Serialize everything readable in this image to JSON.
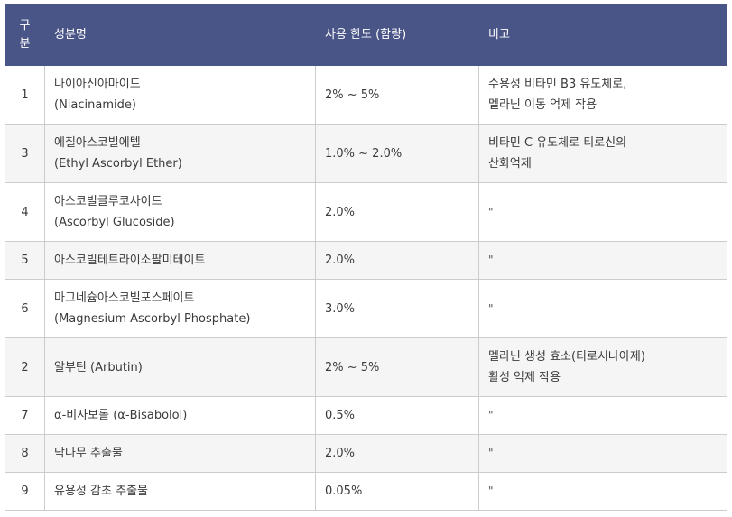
{
  "header": {
    "col_num_line1": "구",
    "col_num_line2": "분",
    "col_name": "성분명",
    "col_limit": "사용 한도 (함량)",
    "col_note": "비고"
  },
  "rows": [
    {
      "num": "1",
      "name_ko": "나이아신아마이드",
      "name_en": "(Niacinamide)",
      "limit": "2% ~ 5%",
      "note_1": "수용성 비타민 B3 유도체로,",
      "note_2": "멜라닌 이동 억제 작용"
    },
    {
      "num": "3",
      "name_ko": "에칠아스코빌에텔",
      "name_en": "(Ethyl Ascorbyl Ether)",
      "limit": "1.0% ~ 2.0%",
      "note_1": "비타민 C 유도체로 티로신의",
      "note_2": "산화억제"
    },
    {
      "num": "4",
      "name_ko": "아스코빌글루코사이드",
      "name_en": "(Ascorbyl Glucoside)",
      "limit": "2.0%",
      "note_1": "\"",
      "note_2": ""
    },
    {
      "num": "5",
      "name_ko": "아스코빌테트라이소팔미테이트",
      "name_en": "",
      "limit": "2.0%",
      "note_1": "\"",
      "note_2": ""
    },
    {
      "num": "6",
      "name_ko": "마그네슘아스코빌포스페이트",
      "name_en": "(Magnesium Ascorbyl Phosphate)",
      "limit": "3.0%",
      "note_1": "\"",
      "note_2": ""
    },
    {
      "num": "2",
      "name_ko": "알부틴 (Arbutin)",
      "name_en": "",
      "limit": "2% ~ 5%",
      "note_1": "멜라닌 생성 효소(티로시나아제)",
      "note_2": "활성 억제 작용"
    },
    {
      "num": "7",
      "name_ko": "α-비사보롤 (α-Bisabolol)",
      "name_en": "",
      "limit": "0.5%",
      "note_1": "\"",
      "note_2": ""
    },
    {
      "num": "8",
      "name_ko": "닥나무 추출물",
      "name_en": "",
      "limit": "2.0%",
      "note_1": "\"",
      "note_2": ""
    },
    {
      "num": "9",
      "name_ko": "유용성 감초 추출물",
      "name_en": "",
      "limit": "0.05%",
      "note_1": "\"",
      "note_2": ""
    }
  ],
  "colors": {
    "header_bg": "#4a5587",
    "header_text": "#ffffff",
    "alt_row_bg": "#f5f5f5",
    "border": "#cccccc"
  }
}
